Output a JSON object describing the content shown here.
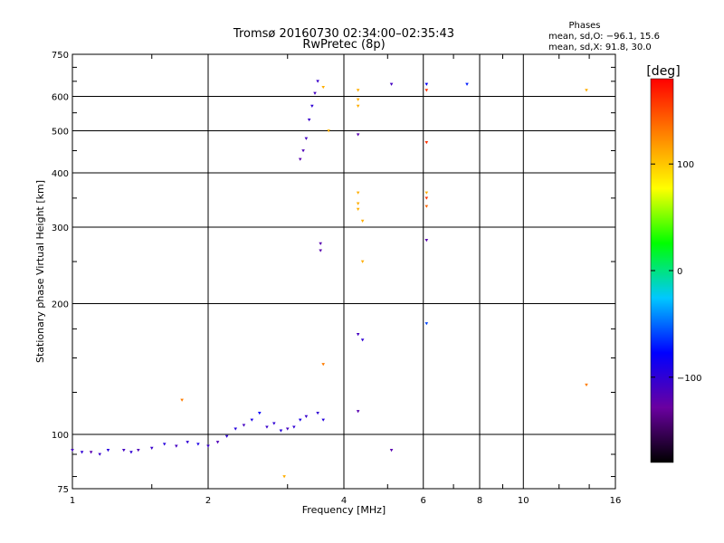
{
  "title_line1": "Tromsø 20160730 02:34:00–02:35:43",
  "title_line2": "RwPretec (8p)",
  "phases_header": "Phases",
  "phases_line_o": "mean, sd,O: −96.1, 15.6",
  "phases_line_x": "mean, sd,X:  91.8, 30.0",
  "colorbar": {
    "label": "[deg]",
    "ticks": [
      "100",
      "0",
      "−100"
    ],
    "tick_values": [
      100,
      0,
      -100
    ],
    "range": [
      -180,
      180
    ],
    "colors": [
      "#000000",
      "#6a00a0",
      "#0000ff",
      "#00c8ff",
      "#00ff00",
      "#ffff00",
      "#ff8000",
      "#ff0000"
    ]
  },
  "chart_data": {
    "type": "scatter",
    "xlabel": "Frequency [MHz]",
    "ylabel": "Stationary phase Virtual Height [km]",
    "x_scale": "log",
    "y_scale": "log",
    "xlim": [
      1,
      16
    ],
    "ylim": [
      75,
      750
    ],
    "x_ticks": [
      1,
      2,
      4,
      6,
      8,
      10,
      16
    ],
    "x_tick_labels": [
      "1",
      "2",
      "4",
      "6",
      "8",
      "10",
      "16"
    ],
    "y_ticks": [
      75,
      100,
      200,
      300,
      400,
      500,
      600,
      750
    ],
    "y_tick_labels": [
      "75",
      "100",
      "200",
      "300",
      "400",
      "500",
      "600",
      "750"
    ],
    "grid": true,
    "points": [
      [
        1.0,
        92,
        -110
      ],
      [
        1.05,
        91,
        -100
      ],
      [
        1.1,
        91,
        -120
      ],
      [
        1.15,
        90,
        -105
      ],
      [
        1.2,
        92,
        -95
      ],
      [
        1.3,
        92,
        -110
      ],
      [
        1.35,
        91,
        -100
      ],
      [
        1.4,
        92,
        -115
      ],
      [
        1.5,
        93,
        -105
      ],
      [
        1.6,
        95,
        -95
      ],
      [
        1.7,
        94,
        -110
      ],
      [
        1.8,
        96,
        -100
      ],
      [
        1.9,
        95,
        -90
      ],
      [
        2.0,
        94,
        -105
      ],
      [
        2.1,
        96,
        -115
      ],
      [
        2.2,
        99,
        -100
      ],
      [
        2.3,
        103,
        -95
      ],
      [
        2.4,
        105,
        -110
      ],
      [
        2.5,
        108,
        -90
      ],
      [
        2.6,
        112,
        -80
      ],
      [
        2.7,
        104,
        -105
      ],
      [
        2.8,
        106,
        -100
      ],
      [
        2.9,
        102,
        -95
      ],
      [
        3.0,
        103,
        -110
      ],
      [
        3.1,
        104,
        -100
      ],
      [
        3.2,
        108,
        -90
      ],
      [
        3.3,
        110,
        -105
      ],
      [
        3.5,
        112,
        -100
      ],
      [
        3.6,
        108,
        -95
      ],
      [
        3.2,
        430,
        -120
      ],
      [
        3.25,
        450,
        -115
      ],
      [
        3.3,
        480,
        -110
      ],
      [
        3.35,
        530,
        -105
      ],
      [
        3.4,
        570,
        -100
      ],
      [
        3.45,
        610,
        -110
      ],
      [
        3.5,
        650,
        -105
      ],
      [
        3.6,
        630,
        110
      ],
      [
        3.7,
        500,
        110
      ],
      [
        4.3,
        620,
        110
      ],
      [
        4.3,
        590,
        110
      ],
      [
        4.3,
        570,
        110
      ],
      [
        4.3,
        490,
        -120
      ],
      [
        4.3,
        360,
        110
      ],
      [
        4.3,
        340,
        110
      ],
      [
        4.3,
        330,
        110
      ],
      [
        4.4,
        310,
        110
      ],
      [
        4.4,
        250,
        110
      ],
      [
        3.55,
        275,
        -120
      ],
      [
        3.55,
        265,
        -120
      ],
      [
        3.6,
        145,
        130
      ],
      [
        4.3,
        170,
        -110
      ],
      [
        4.4,
        165,
        -100
      ],
      [
        4.3,
        113,
        -120
      ],
      [
        5.1,
        640,
        -110
      ],
      [
        5.1,
        92,
        -120
      ],
      [
        6.1,
        640,
        -80
      ],
      [
        6.1,
        620,
        160
      ],
      [
        6.1,
        470,
        160
      ],
      [
        6.1,
        360,
        110
      ],
      [
        6.1,
        350,
        160
      ],
      [
        6.1,
        335,
        140
      ],
      [
        6.1,
        280,
        -120
      ],
      [
        6.1,
        180,
        -60
      ],
      [
        7.5,
        640,
        -70
      ],
      [
        13.8,
        620,
        110
      ],
      [
        13.8,
        130,
        130
      ],
      [
        1.75,
        120,
        130
      ],
      [
        2.95,
        80,
        110
      ]
    ]
  }
}
